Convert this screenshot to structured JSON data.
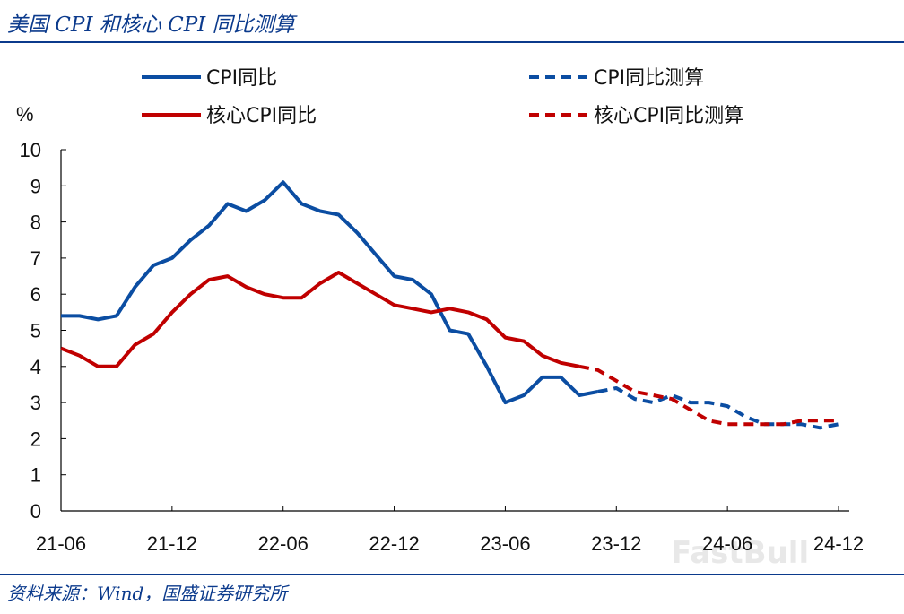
{
  "header": {
    "title": "美国 CPI 和核心 CPI 同比测算"
  },
  "footer": {
    "source": "资料来源：Wind，国盛证券研究所"
  },
  "watermark": "FastBull",
  "colors": {
    "blue": "#0b4da2",
    "red": "#c00000",
    "axis": "#000000",
    "rule": "#0b3a8c"
  },
  "chart_data": {
    "type": "line",
    "title": "美国 CPI 和核心 CPI 同比测算",
    "ylabel": "%",
    "ylim": [
      0,
      10
    ],
    "yticks": [
      0,
      1,
      2,
      3,
      4,
      5,
      6,
      7,
      8,
      9,
      10
    ],
    "x_tick_labels": [
      "21-06",
      "21-12",
      "22-06",
      "22-12",
      "23-06",
      "23-12",
      "24-06",
      "24-12"
    ],
    "x_tick_index": [
      0,
      6,
      12,
      18,
      24,
      30,
      36,
      42
    ],
    "x_months": [
      "21-06",
      "21-07",
      "21-08",
      "21-09",
      "21-10",
      "21-11",
      "21-12",
      "22-01",
      "22-02",
      "22-03",
      "22-04",
      "22-05",
      "22-06",
      "22-07",
      "22-08",
      "22-09",
      "22-10",
      "22-11",
      "22-12",
      "23-01",
      "23-02",
      "23-03",
      "23-04",
      "23-05",
      "23-06",
      "23-07",
      "23-08",
      "23-09",
      "23-10",
      "23-11",
      "23-12",
      "24-01",
      "24-02",
      "24-03",
      "24-04",
      "24-05",
      "24-06",
      "24-07",
      "24-08",
      "24-09",
      "24-10",
      "24-11",
      "24-12"
    ],
    "legend_position": "top",
    "series": [
      {
        "name": "CPI同比",
        "color": "#0b4da2",
        "style": "solid",
        "x_start": 0,
        "values": [
          5.4,
          5.4,
          5.3,
          5.4,
          6.2,
          6.8,
          7.0,
          7.5,
          7.9,
          8.5,
          8.3,
          8.6,
          9.1,
          8.5,
          8.3,
          8.2,
          7.7,
          7.1,
          6.5,
          6.4,
          6.0,
          5.0,
          4.9,
          4.0,
          3.0,
          3.2,
          3.7,
          3.7,
          3.2,
          3.3
        ]
      },
      {
        "name": "核心CPI同比",
        "color": "#c00000",
        "style": "solid",
        "x_start": 0,
        "values": [
          4.5,
          4.3,
          4.0,
          4.0,
          4.6,
          4.9,
          5.5,
          6.0,
          6.4,
          6.5,
          6.2,
          6.0,
          5.9,
          5.9,
          6.3,
          6.6,
          6.3,
          6.0,
          5.7,
          5.6,
          5.5,
          5.6,
          5.5,
          5.3,
          4.8,
          4.7,
          4.3,
          4.1,
          4.0
        ]
      },
      {
        "name": "CPI同比测算",
        "color": "#0b4da2",
        "style": "dashed",
        "x_start": 29,
        "values": [
          3.3,
          3.4,
          3.1,
          3.0,
          3.2,
          3.0,
          3.0,
          2.9,
          2.6,
          2.4,
          2.4,
          2.4,
          2.3,
          2.4
        ]
      },
      {
        "name": "核心CPI同比测算",
        "color": "#c00000",
        "style": "dashed",
        "x_start": 28,
        "values": [
          4.0,
          3.9,
          3.6,
          3.3,
          3.2,
          3.1,
          2.8,
          2.5,
          2.4,
          2.4,
          2.4,
          2.4,
          2.5,
          2.5,
          2.5
        ]
      }
    ]
  }
}
